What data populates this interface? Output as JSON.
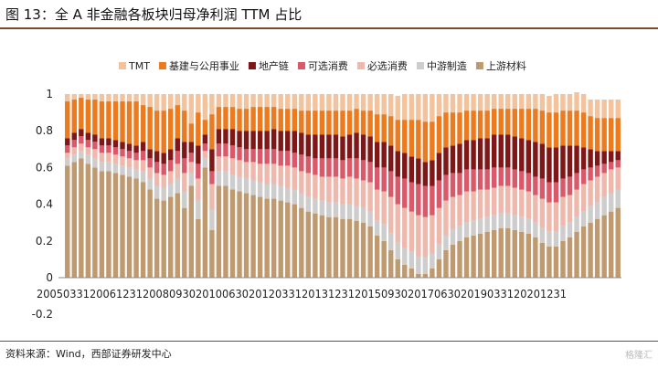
{
  "title": "图 13：全 A 非金融各板块归母净利润 TTM 占比",
  "source": "资料来源：Wind，西部证券研发中心",
  "watermark": "格隆汇",
  "colors": {
    "TMT": "#f2c39c",
    "基建与公用事业": "#ec7a1e",
    "地产链": "#7e1818",
    "可选消费": "#d9586a",
    "必选消费": "#efb8ad",
    "中游制造": "#cdcdcd",
    "上游材料": "#bf9a70"
  },
  "chart_data": {
    "type": "bar",
    "stacked": true,
    "xlabel": "",
    "ylabel": "",
    "ylim": [
      -0.2,
      1
    ],
    "yticks": [
      "-0.2",
      "0",
      "0.2",
      "0.4",
      "0.6",
      "0.8",
      "1"
    ],
    "xticks": [
      "20050331",
      "20061231",
      "20080930",
      "20100630",
      "20120331",
      "20131231",
      "20150930",
      "20170630",
      "20190331",
      "20201231"
    ],
    "legend_position": "top",
    "grid": false,
    "series_order_bottom_to_top": [
      "上游材料",
      "中游制造",
      "必选消费",
      "可选消费",
      "地产链",
      "基建与公用事业",
      "TMT"
    ],
    "series": [
      {
        "name": "上游材料",
        "values": [
          0.61,
          0.63,
          0.65,
          0.62,
          0.6,
          0.58,
          0.58,
          0.57,
          0.56,
          0.55,
          0.54,
          0.52,
          0.48,
          0.43,
          0.42,
          0.44,
          0.46,
          0.38,
          0.5,
          0.32,
          0.6,
          0.26,
          0.5,
          0.5,
          0.48,
          0.47,
          0.46,
          0.45,
          0.44,
          0.43,
          0.43,
          0.42,
          0.41,
          0.4,
          0.38,
          0.36,
          0.35,
          0.34,
          0.33,
          0.33,
          0.32,
          0.32,
          0.31,
          0.3,
          0.28,
          0.23,
          0.2,
          0.15,
          0.1,
          0.07,
          0.05,
          0.02,
          0.02,
          0.05,
          0.1,
          0.15,
          0.18,
          0.2,
          0.22,
          0.23,
          0.24,
          0.25,
          0.26,
          0.27,
          0.27,
          0.26,
          0.25,
          0.24,
          0.22,
          0.19,
          0.17,
          0.17,
          0.2,
          0.22,
          0.25,
          0.28,
          0.3,
          0.32,
          0.34,
          0.36,
          0.38
        ]
      },
      {
        "name": "中游制造",
        "values": [
          0.04,
          0.04,
          0.04,
          0.05,
          0.05,
          0.05,
          0.05,
          0.05,
          0.05,
          0.05,
          0.05,
          0.06,
          0.06,
          0.07,
          0.07,
          0.07,
          0.08,
          0.09,
          0.07,
          0.1,
          0.05,
          0.11,
          0.08,
          0.08,
          0.08,
          0.08,
          0.08,
          0.08,
          0.08,
          0.08,
          0.08,
          0.08,
          0.08,
          0.08,
          0.08,
          0.08,
          0.08,
          0.08,
          0.08,
          0.08,
          0.08,
          0.08,
          0.08,
          0.08,
          0.08,
          0.08,
          0.09,
          0.09,
          0.09,
          0.09,
          0.09,
          0.09,
          0.09,
          0.08,
          0.08,
          0.08,
          0.08,
          0.08,
          0.08,
          0.08,
          0.08,
          0.08,
          0.08,
          0.08,
          0.08,
          0.08,
          0.08,
          0.08,
          0.08,
          0.08,
          0.08,
          0.08,
          0.08,
          0.08,
          0.08,
          0.08,
          0.09,
          0.09,
          0.1,
          0.1,
          0.1
        ]
      },
      {
        "name": "必选消费",
        "values": [
          0.03,
          0.04,
          0.04,
          0.04,
          0.05,
          0.05,
          0.05,
          0.05,
          0.05,
          0.05,
          0.05,
          0.06,
          0.06,
          0.07,
          0.07,
          0.07,
          0.08,
          0.1,
          0.06,
          0.12,
          0.04,
          0.14,
          0.08,
          0.08,
          0.09,
          0.09,
          0.09,
          0.1,
          0.1,
          0.11,
          0.11,
          0.11,
          0.12,
          0.12,
          0.12,
          0.13,
          0.13,
          0.13,
          0.14,
          0.14,
          0.14,
          0.15,
          0.15,
          0.15,
          0.16,
          0.17,
          0.18,
          0.2,
          0.21,
          0.22,
          0.22,
          0.23,
          0.22,
          0.21,
          0.2,
          0.19,
          0.18,
          0.17,
          0.17,
          0.16,
          0.16,
          0.15,
          0.15,
          0.15,
          0.15,
          0.15,
          0.15,
          0.15,
          0.15,
          0.16,
          0.16,
          0.16,
          0.16,
          0.15,
          0.15,
          0.15,
          0.14,
          0.14,
          0.13,
          0.13,
          0.12
        ]
      },
      {
        "name": "可选消费",
        "values": [
          0.04,
          0.04,
          0.04,
          0.04,
          0.04,
          0.04,
          0.04,
          0.04,
          0.04,
          0.04,
          0.04,
          0.05,
          0.05,
          0.06,
          0.06,
          0.06,
          0.07,
          0.08,
          0.05,
          0.08,
          0.04,
          0.07,
          0.07,
          0.07,
          0.07,
          0.07,
          0.07,
          0.07,
          0.08,
          0.08,
          0.08,
          0.08,
          0.08,
          0.08,
          0.09,
          0.09,
          0.09,
          0.1,
          0.1,
          0.1,
          0.1,
          0.1,
          0.11,
          0.11,
          0.11,
          0.12,
          0.13,
          0.14,
          0.15,
          0.16,
          0.16,
          0.17,
          0.17,
          0.16,
          0.15,
          0.14,
          0.13,
          0.12,
          0.12,
          0.12,
          0.11,
          0.11,
          0.11,
          0.1,
          0.1,
          0.1,
          0.1,
          0.1,
          0.1,
          0.11,
          0.11,
          0.11,
          0.1,
          0.1,
          0.09,
          0.08,
          0.07,
          0.06,
          0.05,
          0.04,
          0.04
        ]
      },
      {
        "name": "地产链",
        "values": [
          0.04,
          0.04,
          0.04,
          0.04,
          0.04,
          0.04,
          0.04,
          0.04,
          0.04,
          0.04,
          0.04,
          0.05,
          0.05,
          0.06,
          0.06,
          0.06,
          0.07,
          0.09,
          0.06,
          0.1,
          0.05,
          0.12,
          0.08,
          0.08,
          0.09,
          0.09,
          0.1,
          0.1,
          0.1,
          0.1,
          0.11,
          0.11,
          0.11,
          0.12,
          0.12,
          0.12,
          0.13,
          0.13,
          0.13,
          0.13,
          0.13,
          0.13,
          0.14,
          0.14,
          0.14,
          0.14,
          0.14,
          0.14,
          0.14,
          0.14,
          0.14,
          0.14,
          0.13,
          0.14,
          0.15,
          0.15,
          0.15,
          0.16,
          0.16,
          0.16,
          0.17,
          0.17,
          0.18,
          0.18,
          0.18,
          0.18,
          0.18,
          0.18,
          0.19,
          0.19,
          0.19,
          0.19,
          0.18,
          0.17,
          0.15,
          0.12,
          0.1,
          0.08,
          0.07,
          0.06,
          0.05
        ]
      },
      {
        "name": "基建与公用事业",
        "values": [
          0.2,
          0.18,
          0.17,
          0.18,
          0.19,
          0.2,
          0.2,
          0.21,
          0.22,
          0.23,
          0.24,
          0.2,
          0.23,
          0.22,
          0.23,
          0.22,
          0.18,
          0.17,
          0.1,
          0.18,
          0.08,
          0.19,
          0.12,
          0.12,
          0.12,
          0.12,
          0.12,
          0.13,
          0.13,
          0.13,
          0.12,
          0.12,
          0.12,
          0.12,
          0.12,
          0.13,
          0.13,
          0.13,
          0.13,
          0.13,
          0.14,
          0.13,
          0.13,
          0.13,
          0.14,
          0.15,
          0.15,
          0.16,
          0.17,
          0.18,
          0.2,
          0.21,
          0.22,
          0.21,
          0.2,
          0.19,
          0.18,
          0.17,
          0.16,
          0.16,
          0.15,
          0.15,
          0.14,
          0.14,
          0.14,
          0.15,
          0.16,
          0.17,
          0.18,
          0.18,
          0.19,
          0.19,
          0.19,
          0.19,
          0.19,
          0.19,
          0.18,
          0.18,
          0.18,
          0.18,
          0.18
        ]
      },
      {
        "name": "TMT",
        "values": [
          0.04,
          0.03,
          0.02,
          0.03,
          0.03,
          0.04,
          0.04,
          0.04,
          0.04,
          0.04,
          0.04,
          0.06,
          0.07,
          0.09,
          0.09,
          0.08,
          0.06,
          0.09,
          0.16,
          0.1,
          0.14,
          0.11,
          0.07,
          0.07,
          0.07,
          0.08,
          0.08,
          0.07,
          0.07,
          0.07,
          0.07,
          0.08,
          0.08,
          0.08,
          0.09,
          0.09,
          0.09,
          0.09,
          0.09,
          0.09,
          0.09,
          0.09,
          0.08,
          0.09,
          0.09,
          0.11,
          0.11,
          0.12,
          0.13,
          0.14,
          0.14,
          0.14,
          0.15,
          0.15,
          0.12,
          0.1,
          0.1,
          0.1,
          0.09,
          0.09,
          0.09,
          0.09,
          0.08,
          0.08,
          0.08,
          0.08,
          0.08,
          0.08,
          0.08,
          0.09,
          0.09,
          0.1,
          0.09,
          0.09,
          0.1,
          0.1,
          0.09,
          0.1,
          0.1,
          0.1,
          0.1
        ]
      }
    ]
  }
}
